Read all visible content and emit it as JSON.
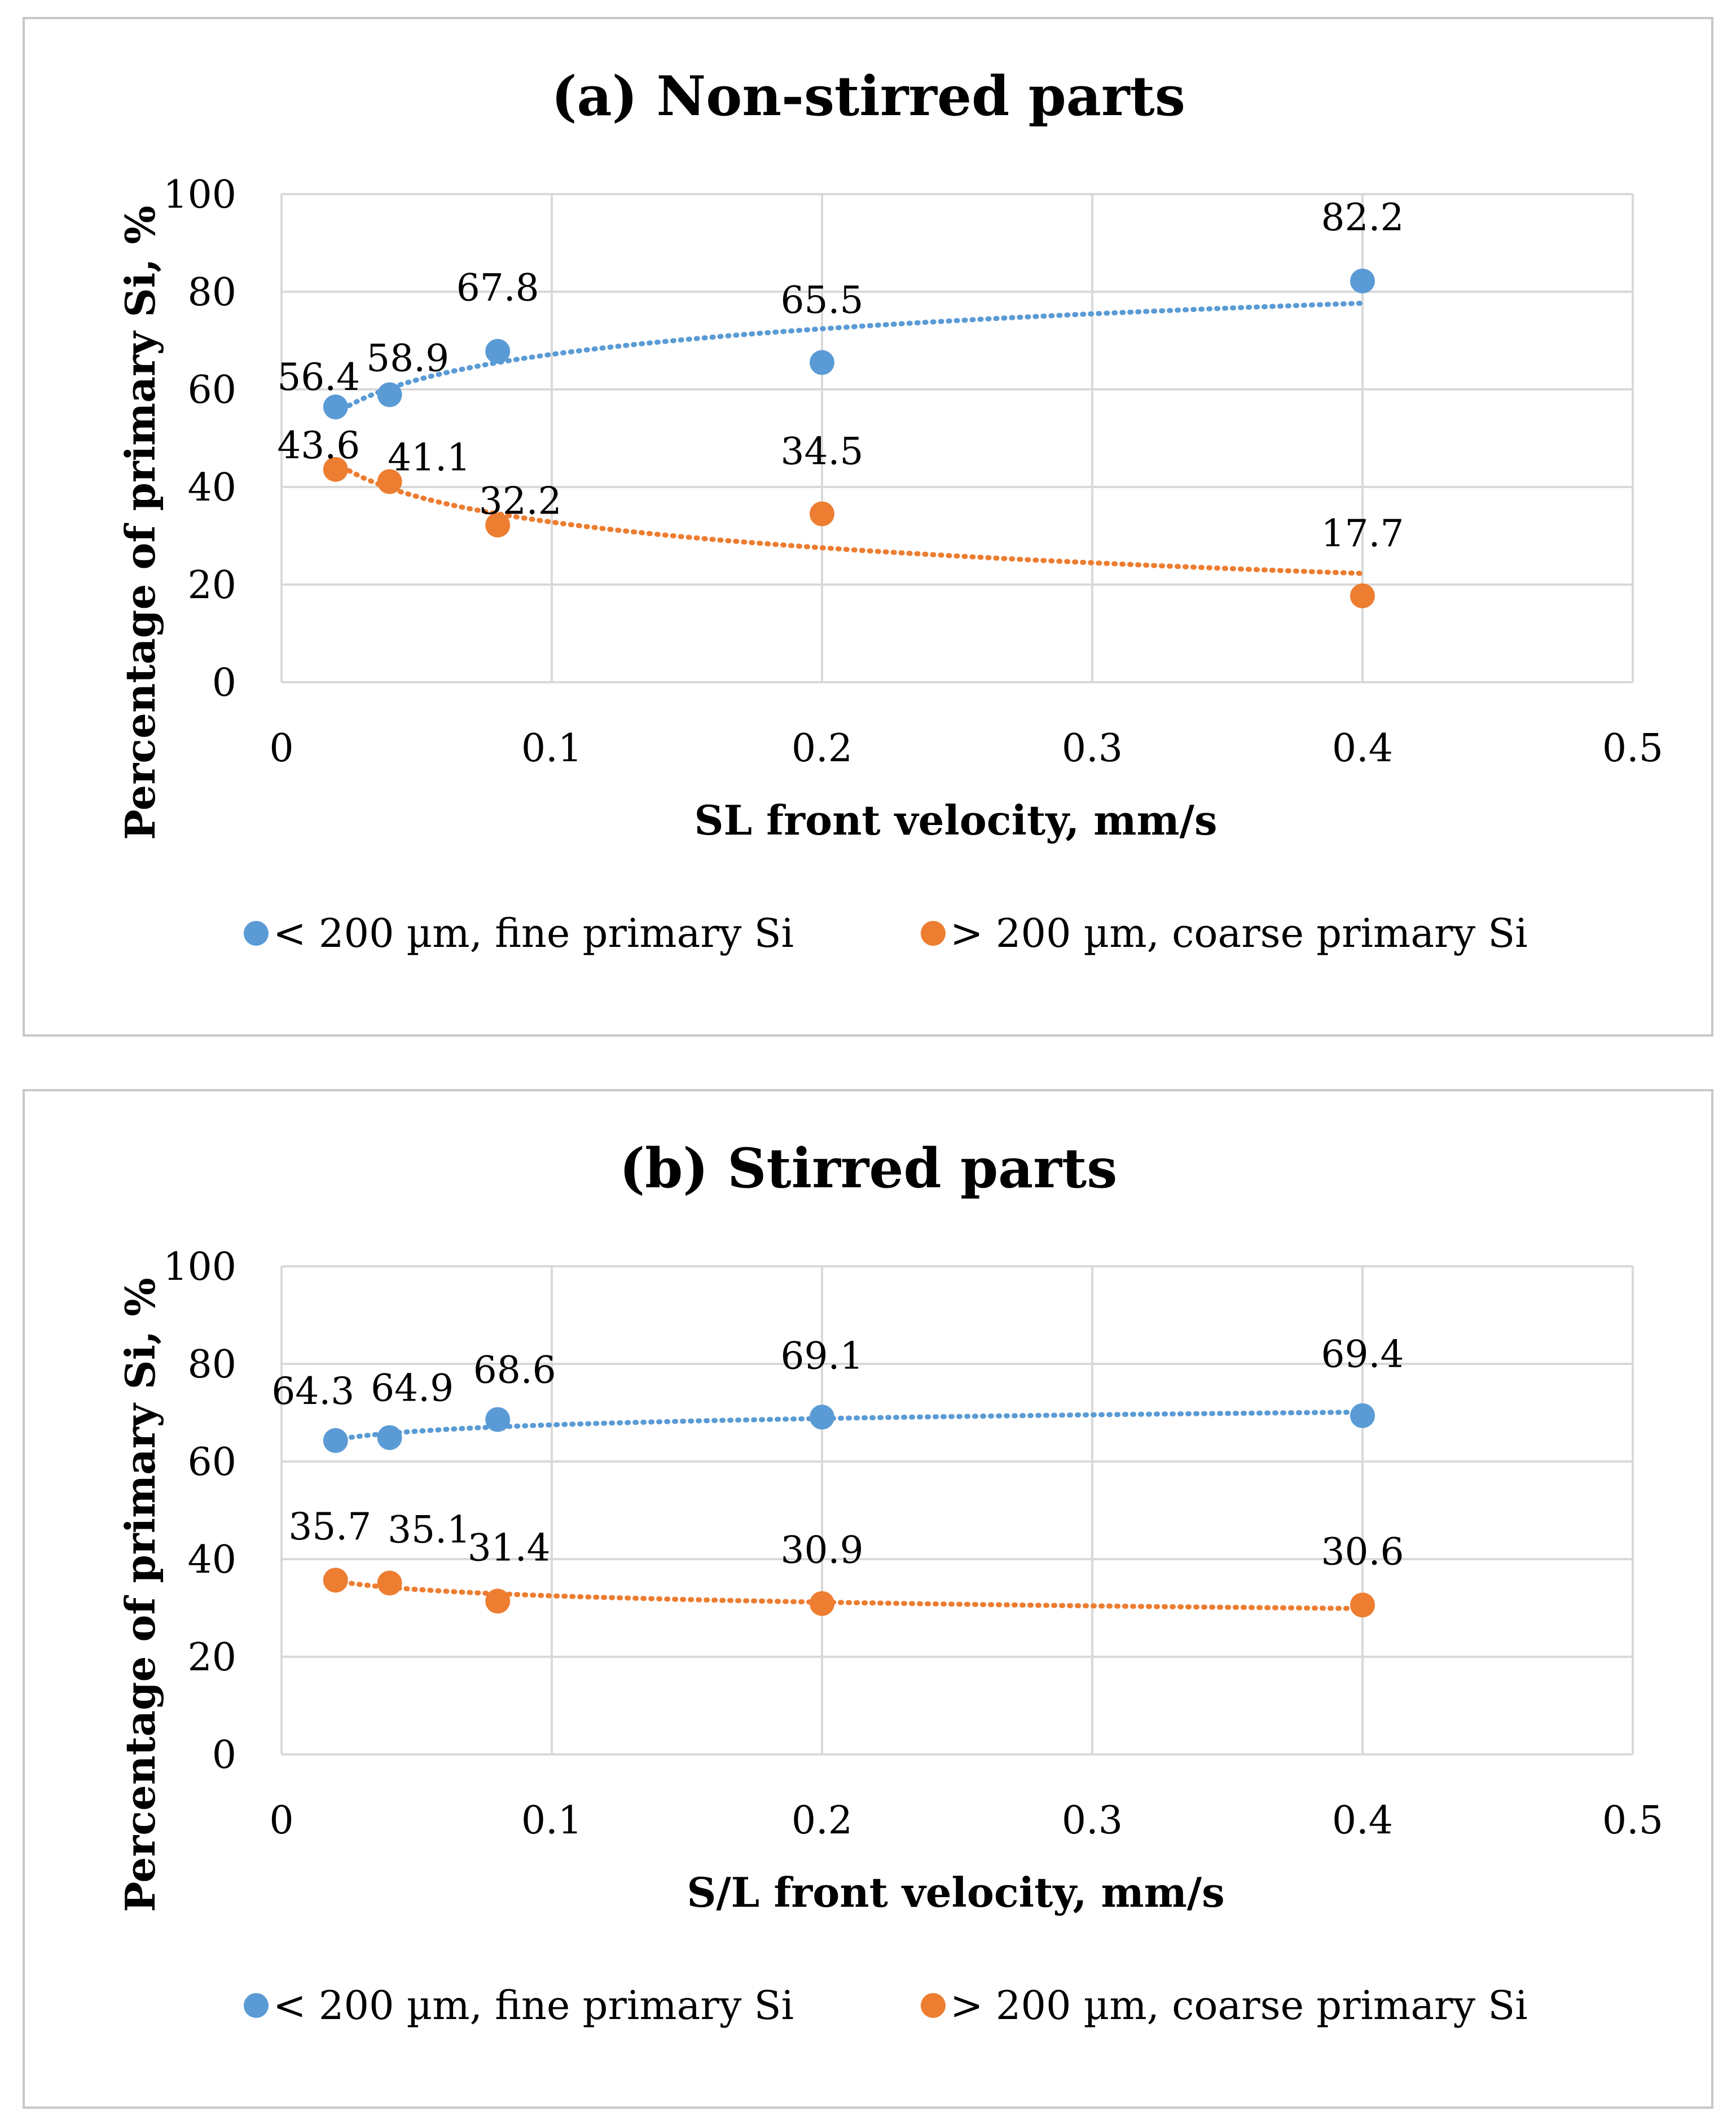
{
  "colors": {
    "fine": "#5b9bd5",
    "coarse": "#ed7d31",
    "grid": "#d9d9d9",
    "frame": "#c8c8c8"
  },
  "chart_data": [
    {
      "type": "scatter",
      "title": "(a) Non-stirred parts",
      "xlabel": "SL front velocity, mm/s",
      "ylabel": "Percentage of primary Si, %",
      "xlim": [
        0,
        0.5
      ],
      "ylim": [
        0,
        100
      ],
      "xticks": [
        "0",
        "0.1",
        "0.2",
        "0.3",
        "0.4",
        "0.5"
      ],
      "yticks": [
        "0",
        "20",
        "40",
        "60",
        "80",
        "100"
      ],
      "x": [
        0.02,
        0.04,
        0.08,
        0.2,
        0.4
      ],
      "trendline": "logarithmic, dotted",
      "series": [
        {
          "name": "< 200 µm, fine primary Si",
          "color": "fine",
          "values": [
            56.4,
            58.9,
            67.8,
            65.5,
            82.2
          ],
          "labels": [
            "56.4",
            "58.9",
            "67.8",
            "65.5",
            "82.2"
          ]
        },
        {
          "name": "> 200 µm, coarse primary Si",
          "color": "coarse",
          "values": [
            43.6,
            41.1,
            32.2,
            34.5,
            17.7
          ],
          "labels": [
            "43.6",
            "41.1",
            "32.2",
            "34.5",
            "17.7"
          ]
        }
      ]
    },
    {
      "type": "scatter",
      "title": "(b) Stirred parts",
      "xlabel": "S/L front velocity, mm/s",
      "ylabel": "Percentage of primary Si, %",
      "xlim": [
        0,
        0.5
      ],
      "ylim": [
        0,
        100
      ],
      "xticks": [
        "0",
        "0.1",
        "0.2",
        "0.3",
        "0.4",
        "0.5"
      ],
      "yticks": [
        "0",
        "20",
        "40",
        "60",
        "80",
        "100"
      ],
      "x": [
        0.02,
        0.04,
        0.08,
        0.2,
        0.4
      ],
      "trendline": "logarithmic, dotted",
      "series": [
        {
          "name": "< 200 µm,  fine primary Si",
          "color": "fine",
          "values": [
            64.3,
            64.9,
            68.6,
            69.1,
            69.4
          ],
          "labels": [
            "64.3",
            "64.9",
            "68.6",
            "69.1",
            "69.4"
          ]
        },
        {
          "name": "> 200 µm, coarse primary Si",
          "color": "coarse",
          "values": [
            35.7,
            35.1,
            31.4,
            30.9,
            30.6
          ],
          "labels": [
            "35.7",
            "35.1",
            "31.4",
            "30.9",
            "30.6"
          ]
        }
      ]
    }
  ]
}
